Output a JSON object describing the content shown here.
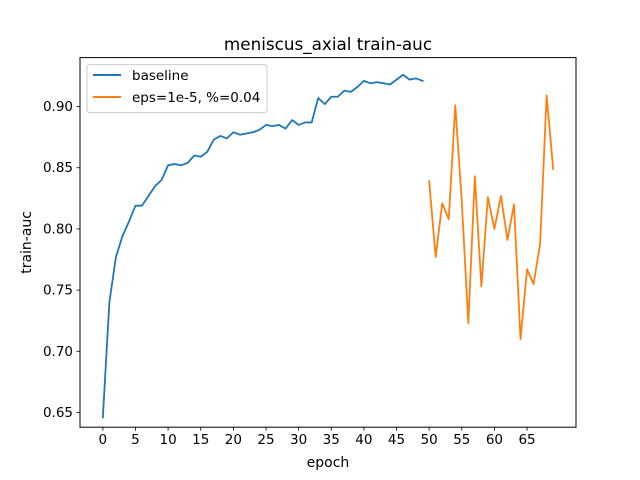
{
  "chart_data": {
    "type": "line",
    "title": "meniscus_axial train-auc",
    "xlabel": "epoch",
    "ylabel": "train-auc",
    "xlim": [
      -3.5,
      72.5
    ],
    "ylim": [
      0.638,
      0.94
    ],
    "xticks": [
      0,
      5,
      10,
      15,
      20,
      25,
      30,
      35,
      40,
      45,
      50,
      55,
      60,
      65
    ],
    "yticks": [
      0.65,
      0.7,
      0.75,
      0.8,
      0.85,
      0.9
    ],
    "grid": false,
    "legend_position": "upper-left",
    "series": [
      {
        "name": "baseline",
        "color": "#1f77b4",
        "x": [
          0,
          1,
          2,
          3,
          4,
          5,
          6,
          7,
          8,
          9,
          10,
          11,
          12,
          13,
          14,
          15,
          16,
          17,
          18,
          19,
          20,
          21,
          22,
          23,
          24,
          25,
          26,
          27,
          28,
          29,
          30,
          31,
          32,
          33,
          34,
          35,
          36,
          37,
          38,
          39,
          40,
          41,
          42,
          43,
          44,
          45,
          46,
          47,
          48,
          49
        ],
        "values": [
          0.646,
          0.74,
          0.777,
          0.794,
          0.806,
          0.819,
          0.819,
          0.827,
          0.835,
          0.84,
          0.852,
          0.853,
          0.852,
          0.854,
          0.86,
          0.859,
          0.863,
          0.873,
          0.876,
          0.874,
          0.879,
          0.877,
          0.878,
          0.879,
          0.881,
          0.885,
          0.884,
          0.885,
          0.882,
          0.889,
          0.885,
          0.887,
          0.887,
          0.907,
          0.902,
          0.908,
          0.908,
          0.913,
          0.912,
          0.916,
          0.921,
          0.919,
          0.92,
          0.919,
          0.918,
          0.922,
          0.926,
          0.922,
          0.923,
          0.921
        ]
      },
      {
        "name": "eps=1e-5, %=0.04",
        "color": "#ff7f0e",
        "x": [
          50,
          51,
          52,
          53,
          54,
          55,
          56,
          57,
          58,
          59,
          60,
          61,
          62,
          63,
          64,
          65,
          66,
          67,
          68,
          69
        ],
        "values": [
          0.839,
          0.777,
          0.821,
          0.808,
          0.901,
          0.822,
          0.723,
          0.843,
          0.753,
          0.826,
          0.8,
          0.827,
          0.791,
          0.82,
          0.71,
          0.767,
          0.755,
          0.788,
          0.909,
          0.849
        ]
      }
    ]
  }
}
